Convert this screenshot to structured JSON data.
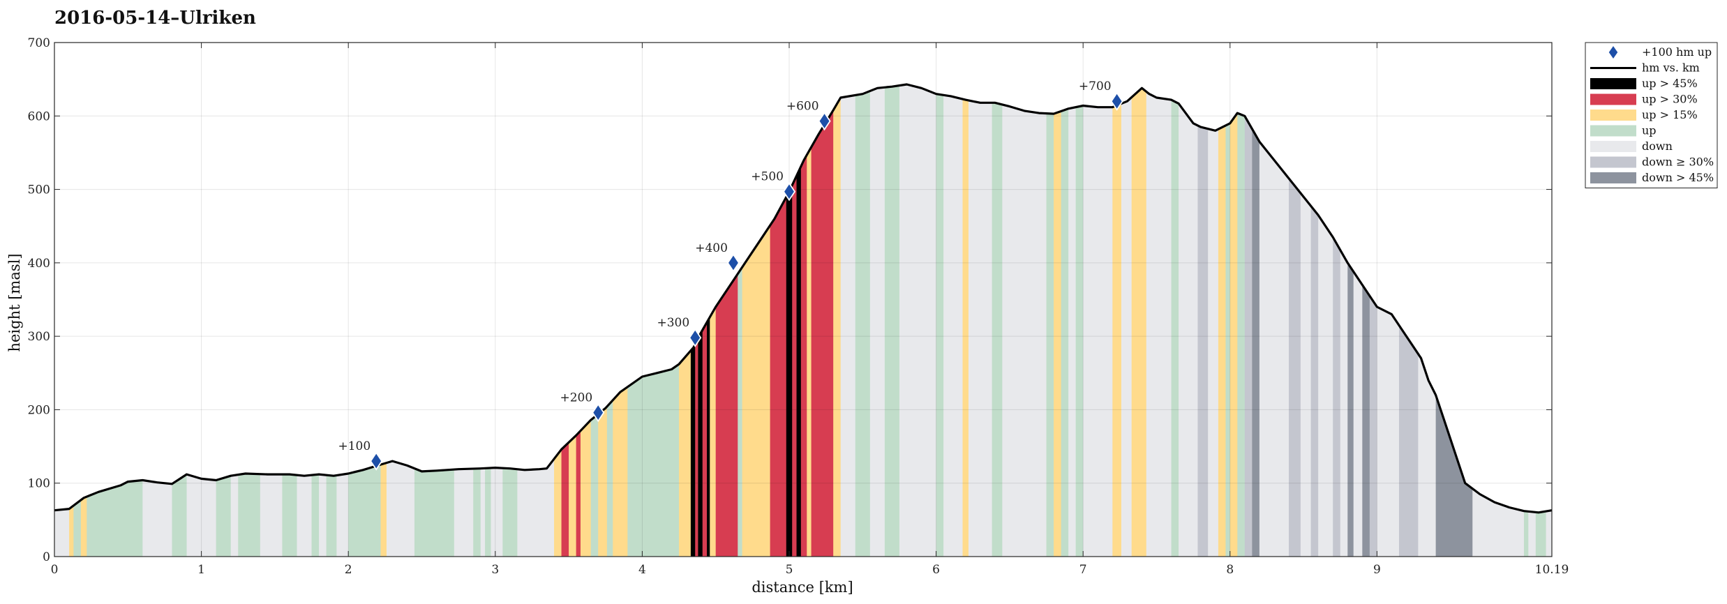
{
  "chart_data": {
    "type": "area",
    "title": "2016-05-14–Ulriken",
    "xlabel": "distance [km]",
    "ylabel": "height [masl]",
    "xlim": [
      0,
      10.19
    ],
    "ylim": [
      0,
      700
    ],
    "x_ticks": [
      0,
      1,
      2,
      3,
      4,
      5,
      6,
      7,
      8,
      9,
      10.19
    ],
    "x_tick_labels": [
      "0",
      "1",
      "2",
      "3",
      "4",
      "5",
      "6",
      "7",
      "8",
      "9",
      "10.19"
    ],
    "y_ticks": [
      0,
      100,
      200,
      300,
      400,
      500,
      600,
      700
    ],
    "y_tick_labels": [
      "0",
      "100",
      "200",
      "300",
      "400",
      "500",
      "600",
      "700"
    ],
    "grid": true,
    "legend_position": "outside-top-right",
    "colors": {
      "up45": "#000000",
      "up30": "#d73d51",
      "up15": "#ffdb8c",
      "up": "#c1ddca",
      "down": "#e8e9ec",
      "down30": "#c4c6cf",
      "down45": "#8d939e",
      "line": "#000000",
      "marker": "#1d4fa8"
    },
    "legend": [
      {
        "label": "+100 hm up",
        "key": "marker"
      },
      {
        "label": "hm vs. km",
        "key": "line"
      },
      {
        "label": "up > 45%",
        "key": "up45"
      },
      {
        "label": "up > 30%",
        "key": "up30"
      },
      {
        "label": "up > 15%",
        "key": "up15"
      },
      {
        "label": "up",
        "key": "up"
      },
      {
        "label": "down",
        "key": "down"
      },
      {
        "label": "down ≥ 30%",
        "key": "down30"
      },
      {
        "label": "down > 45%",
        "key": "down45"
      }
    ],
    "profile": [
      [
        0,
        63
      ],
      [
        0.1,
        65
      ],
      [
        0.2,
        80
      ],
      [
        0.3,
        88
      ],
      [
        0.45,
        97
      ],
      [
        0.5,
        102
      ],
      [
        0.6,
        104
      ],
      [
        0.7,
        101
      ],
      [
        0.8,
        99
      ],
      [
        0.9,
        112
      ],
      [
        1.0,
        106
      ],
      [
        1.1,
        104
      ],
      [
        1.2,
        110
      ],
      [
        1.3,
        113
      ],
      [
        1.45,
        112
      ],
      [
        1.6,
        112
      ],
      [
        1.7,
        110
      ],
      [
        1.8,
        112
      ],
      [
        1.9,
        110
      ],
      [
        2.0,
        113
      ],
      [
        2.1,
        118
      ],
      [
        2.2,
        124
      ],
      [
        2.3,
        130
      ],
      [
        2.4,
        124
      ],
      [
        2.5,
        116
      ],
      [
        2.6,
        117
      ],
      [
        2.75,
        119
      ],
      [
        2.9,
        120
      ],
      [
        3.0,
        121
      ],
      [
        3.1,
        120
      ],
      [
        3.2,
        118
      ],
      [
        3.3,
        119
      ],
      [
        3.35,
        120
      ],
      [
        3.45,
        146
      ],
      [
        3.55,
        165
      ],
      [
        3.65,
        186
      ],
      [
        3.75,
        202
      ],
      [
        3.85,
        224
      ],
      [
        4.0,
        245
      ],
      [
        4.1,
        250
      ],
      [
        4.2,
        255
      ],
      [
        4.25,
        262
      ],
      [
        4.35,
        285
      ],
      [
        4.4,
        305
      ],
      [
        4.5,
        340
      ],
      [
        4.6,
        370
      ],
      [
        4.7,
        400
      ],
      [
        4.8,
        430
      ],
      [
        4.9,
        460
      ],
      [
        5.0,
        497
      ],
      [
        5.1,
        540
      ],
      [
        5.2,
        575
      ],
      [
        5.3,
        608
      ],
      [
        5.35,
        625
      ],
      [
        5.5,
        630
      ],
      [
        5.6,
        638
      ],
      [
        5.7,
        640
      ],
      [
        5.8,
        643
      ],
      [
        5.9,
        638
      ],
      [
        6.0,
        630
      ],
      [
        6.1,
        627
      ],
      [
        6.2,
        622
      ],
      [
        6.3,
        618
      ],
      [
        6.4,
        618
      ],
      [
        6.5,
        613
      ],
      [
        6.6,
        607
      ],
      [
        6.7,
        604
      ],
      [
        6.8,
        603
      ],
      [
        6.9,
        610
      ],
      [
        7.0,
        614
      ],
      [
        7.1,
        612
      ],
      [
        7.2,
        612
      ],
      [
        7.3,
        620
      ],
      [
        7.4,
        638
      ],
      [
        7.45,
        630
      ],
      [
        7.5,
        625
      ],
      [
        7.6,
        622
      ],
      [
        7.65,
        617
      ],
      [
        7.75,
        590
      ],
      [
        7.8,
        585
      ],
      [
        7.9,
        580
      ],
      [
        8.0,
        590
      ],
      [
        8.05,
        604
      ],
      [
        8.1,
        600
      ],
      [
        8.2,
        565
      ],
      [
        8.3,
        540
      ],
      [
        8.4,
        515
      ],
      [
        8.5,
        490
      ],
      [
        8.6,
        465
      ],
      [
        8.7,
        435
      ],
      [
        8.8,
        400
      ],
      [
        8.9,
        370
      ],
      [
        9.0,
        340
      ],
      [
        9.1,
        330
      ],
      [
        9.2,
        300
      ],
      [
        9.3,
        270
      ],
      [
        9.35,
        240
      ],
      [
        9.4,
        220
      ],
      [
        9.45,
        190
      ],
      [
        9.55,
        130
      ],
      [
        9.6,
        100
      ],
      [
        9.7,
        85
      ],
      [
        9.8,
        74
      ],
      [
        9.9,
        67
      ],
      [
        10.0,
        62
      ],
      [
        10.1,
        60
      ],
      [
        10.19,
        63
      ]
    ],
    "segments": [
      [
        0,
        0.1,
        "down"
      ],
      [
        0.1,
        0.13,
        "up15"
      ],
      [
        0.13,
        0.18,
        "up"
      ],
      [
        0.18,
        0.22,
        "up15"
      ],
      [
        0.22,
        0.6,
        "up"
      ],
      [
        0.6,
        0.8,
        "down"
      ],
      [
        0.8,
        0.9,
        "up"
      ],
      [
        0.9,
        1.1,
        "down"
      ],
      [
        1.1,
        1.2,
        "up"
      ],
      [
        1.2,
        1.25,
        "down"
      ],
      [
        1.25,
        1.4,
        "up"
      ],
      [
        1.4,
        1.55,
        "down"
      ],
      [
        1.55,
        1.65,
        "up"
      ],
      [
        1.65,
        1.75,
        "down"
      ],
      [
        1.75,
        1.8,
        "up"
      ],
      [
        1.8,
        1.85,
        "down"
      ],
      [
        1.85,
        1.92,
        "up"
      ],
      [
        1.92,
        2.0,
        "down"
      ],
      [
        2.0,
        2.22,
        "up"
      ],
      [
        2.22,
        2.26,
        "up15"
      ],
      [
        2.26,
        2.45,
        "down"
      ],
      [
        2.45,
        2.72,
        "up"
      ],
      [
        2.72,
        2.85,
        "down"
      ],
      [
        2.85,
        2.9,
        "up"
      ],
      [
        2.9,
        2.93,
        "down"
      ],
      [
        2.93,
        2.97,
        "up"
      ],
      [
        2.97,
        3.05,
        "down"
      ],
      [
        3.05,
        3.15,
        "up"
      ],
      [
        3.15,
        3.4,
        "down"
      ],
      [
        3.4,
        3.45,
        "up15"
      ],
      [
        3.45,
        3.5,
        "up30"
      ],
      [
        3.5,
        3.55,
        "up15"
      ],
      [
        3.55,
        3.58,
        "up30"
      ],
      [
        3.58,
        3.65,
        "up15"
      ],
      [
        3.65,
        3.7,
        "up"
      ],
      [
        3.7,
        3.76,
        "up15"
      ],
      [
        3.76,
        3.8,
        "up"
      ],
      [
        3.8,
        3.9,
        "up15"
      ],
      [
        3.9,
        4.25,
        "up"
      ],
      [
        4.25,
        4.33,
        "up15"
      ],
      [
        4.33,
        4.36,
        "up45"
      ],
      [
        4.36,
        4.38,
        "up30"
      ],
      [
        4.38,
        4.41,
        "up45"
      ],
      [
        4.41,
        4.44,
        "up30"
      ],
      [
        4.44,
        4.46,
        "up45"
      ],
      [
        4.46,
        4.5,
        "up15"
      ],
      [
        4.5,
        4.65,
        "up30"
      ],
      [
        4.65,
        4.68,
        "up"
      ],
      [
        4.68,
        4.87,
        "up15"
      ],
      [
        4.87,
        4.98,
        "up30"
      ],
      [
        4.98,
        5.02,
        "up45"
      ],
      [
        5.02,
        5.05,
        "up30"
      ],
      [
        5.05,
        5.08,
        "up45"
      ],
      [
        5.08,
        5.12,
        "up30"
      ],
      [
        5.12,
        5.15,
        "up15"
      ],
      [
        5.15,
        5.3,
        "up30"
      ],
      [
        5.3,
        5.35,
        "up15"
      ],
      [
        5.35,
        5.45,
        "down"
      ],
      [
        5.45,
        5.55,
        "up"
      ],
      [
        5.55,
        5.65,
        "down"
      ],
      [
        5.65,
        5.75,
        "up"
      ],
      [
        5.75,
        6.0,
        "down"
      ],
      [
        6.0,
        6.05,
        "up"
      ],
      [
        6.05,
        6.18,
        "down"
      ],
      [
        6.18,
        6.22,
        "up15"
      ],
      [
        6.22,
        6.38,
        "down"
      ],
      [
        6.38,
        6.45,
        "up"
      ],
      [
        6.45,
        6.75,
        "down"
      ],
      [
        6.75,
        6.8,
        "up"
      ],
      [
        6.8,
        6.85,
        "up15"
      ],
      [
        6.85,
        6.9,
        "up"
      ],
      [
        6.9,
        6.95,
        "down"
      ],
      [
        6.95,
        7.0,
        "up"
      ],
      [
        7.0,
        7.2,
        "down"
      ],
      [
        7.2,
        7.26,
        "up15"
      ],
      [
        7.26,
        7.33,
        "down"
      ],
      [
        7.33,
        7.43,
        "up15"
      ],
      [
        7.43,
        7.6,
        "down"
      ],
      [
        7.6,
        7.65,
        "up"
      ],
      [
        7.65,
        7.78,
        "down"
      ],
      [
        7.78,
        7.85,
        "down30"
      ],
      [
        7.85,
        7.92,
        "down"
      ],
      [
        7.92,
        7.97,
        "up15"
      ],
      [
        7.97,
        8.0,
        "up"
      ],
      [
        8.0,
        8.05,
        "up15"
      ],
      [
        8.05,
        8.1,
        "up"
      ],
      [
        8.1,
        8.15,
        "down30"
      ],
      [
        8.15,
        8.2,
        "down45"
      ],
      [
        8.2,
        8.4,
        "down"
      ],
      [
        8.4,
        8.48,
        "down30"
      ],
      [
        8.48,
        8.55,
        "down"
      ],
      [
        8.55,
        8.6,
        "down30"
      ],
      [
        8.6,
        8.7,
        "down"
      ],
      [
        8.7,
        8.75,
        "down30"
      ],
      [
        8.75,
        8.8,
        "down"
      ],
      [
        8.8,
        8.84,
        "down45"
      ],
      [
        8.84,
        8.9,
        "down"
      ],
      [
        8.9,
        8.95,
        "down45"
      ],
      [
        8.95,
        9.0,
        "down30"
      ],
      [
        9.0,
        9.15,
        "down"
      ],
      [
        9.15,
        9.28,
        "down30"
      ],
      [
        9.28,
        9.4,
        "down"
      ],
      [
        9.4,
        9.65,
        "down45"
      ],
      [
        9.65,
        10.0,
        "down"
      ],
      [
        10.0,
        10.03,
        "up"
      ],
      [
        10.03,
        10.08,
        "down"
      ],
      [
        10.08,
        10.15,
        "up"
      ],
      [
        10.15,
        10.19,
        "down"
      ]
    ],
    "markers": [
      {
        "x": 2.19,
        "y": 130,
        "label": "+100"
      },
      {
        "x": 3.7,
        "y": 196,
        "label": "+200"
      },
      {
        "x": 4.36,
        "y": 298,
        "label": "+300"
      },
      {
        "x": 4.62,
        "y": 400,
        "label": "+400"
      },
      {
        "x": 5.0,
        "y": 497,
        "label": "+500"
      },
      {
        "x": 5.24,
        "y": 593,
        "label": "+600"
      },
      {
        "x": 7.23,
        "y": 620,
        "label": "+700"
      }
    ]
  }
}
